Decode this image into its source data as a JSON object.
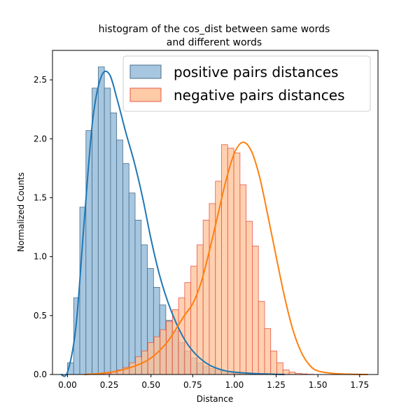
{
  "chart_data": {
    "type": "bar",
    "title": [
      "histogram of the cos_dist between same words",
      "and different words"
    ],
    "xlabel": "Distance",
    "ylabel": "Normalized Counts",
    "xlim": [
      -0.09,
      1.86
    ],
    "ylim": [
      0,
      2.75
    ],
    "xticks": [
      0.0,
      0.25,
      0.5,
      0.75,
      1.0,
      1.25,
      1.5,
      1.75
    ],
    "xtick_labels": [
      "0.00",
      "0.25",
      "0.50",
      "0.75",
      "1.00",
      "1.25",
      "1.50",
      "1.75"
    ],
    "yticks": [
      0.0,
      0.5,
      1.0,
      1.5,
      2.0,
      2.5
    ],
    "ytick_labels": [
      "0.0",
      "0.5",
      "1.0",
      "1.5",
      "2.0",
      "2.5"
    ],
    "grid": false,
    "legend_position": "top-right",
    "bin_width": 0.0368,
    "series": [
      {
        "name": "positive pairs distances",
        "bar_color": "#a7c7e0",
        "edge_color": "#4a6e8a",
        "kde_color": "#1f77b4",
        "bin_start": 0.0,
        "values": [
          0.1,
          0.65,
          1.42,
          2.07,
          2.43,
          2.61,
          2.43,
          2.22,
          1.99,
          1.79,
          1.54,
          1.31,
          1.1,
          0.9,
          0.74,
          0.59,
          0.46,
          0.37,
          0.27,
          0.2,
          0.14,
          0.1,
          0.07,
          0.05,
          0.04,
          0.03,
          0.02,
          0.01,
          0.01,
          0.005,
          0.003,
          0.002,
          0.001
        ],
        "kde": [
          [
            -0.04,
            0.0
          ],
          [
            0.0,
            0.02
          ],
          [
            0.05,
            0.4
          ],
          [
            0.1,
            1.3
          ],
          [
            0.15,
            2.15
          ],
          [
            0.2,
            2.52
          ],
          [
            0.25,
            2.55
          ],
          [
            0.3,
            2.32
          ],
          [
            0.35,
            2.05
          ],
          [
            0.4,
            1.8
          ],
          [
            0.45,
            1.5
          ],
          [
            0.5,
            1.15
          ],
          [
            0.55,
            0.85
          ],
          [
            0.6,
            0.62
          ],
          [
            0.65,
            0.44
          ],
          [
            0.7,
            0.3
          ],
          [
            0.75,
            0.2
          ],
          [
            0.8,
            0.13
          ],
          [
            0.85,
            0.08
          ],
          [
            0.9,
            0.05
          ],
          [
            0.95,
            0.03
          ],
          [
            1.0,
            0.02
          ],
          [
            1.1,
            0.01
          ],
          [
            1.2,
            0.004
          ],
          [
            1.3,
            0.0
          ]
        ]
      },
      {
        "name": "negative pairs distances",
        "bar_color": "#ffc196",
        "edge_color": "#e6584a",
        "kde_color": "#ff7f0e",
        "bin_start": 0.15,
        "values": [
          0.002,
          0.005,
          0.01,
          0.02,
          0.04,
          0.06,
          0.1,
          0.15,
          0.2,
          0.27,
          0.32,
          0.38,
          0.45,
          0.55,
          0.65,
          0.78,
          0.92,
          1.1,
          1.31,
          1.45,
          1.64,
          1.95,
          1.92,
          1.88,
          1.61,
          1.3,
          1.09,
          0.62,
          0.39,
          0.2,
          0.1,
          0.04,
          0.02,
          0.01,
          0.005,
          0.002
        ],
        "kde": [
          [
            0.1,
            0.0
          ],
          [
            0.2,
            0.01
          ],
          [
            0.3,
            0.03
          ],
          [
            0.4,
            0.07
          ],
          [
            0.5,
            0.14
          ],
          [
            0.6,
            0.28
          ],
          [
            0.7,
            0.5
          ],
          [
            0.75,
            0.6
          ],
          [
            0.8,
            0.78
          ],
          [
            0.85,
            1.05
          ],
          [
            0.9,
            1.35
          ],
          [
            0.95,
            1.65
          ],
          [
            1.0,
            1.88
          ],
          [
            1.05,
            1.97
          ],
          [
            1.1,
            1.9
          ],
          [
            1.15,
            1.68
          ],
          [
            1.2,
            1.35
          ],
          [
            1.25,
            1.0
          ],
          [
            1.3,
            0.66
          ],
          [
            1.35,
            0.38
          ],
          [
            1.4,
            0.19
          ],
          [
            1.45,
            0.08
          ],
          [
            1.5,
            0.03
          ],
          [
            1.6,
            0.008
          ],
          [
            1.7,
            0.002
          ],
          [
            1.8,
            0.0
          ]
        ]
      }
    ]
  }
}
